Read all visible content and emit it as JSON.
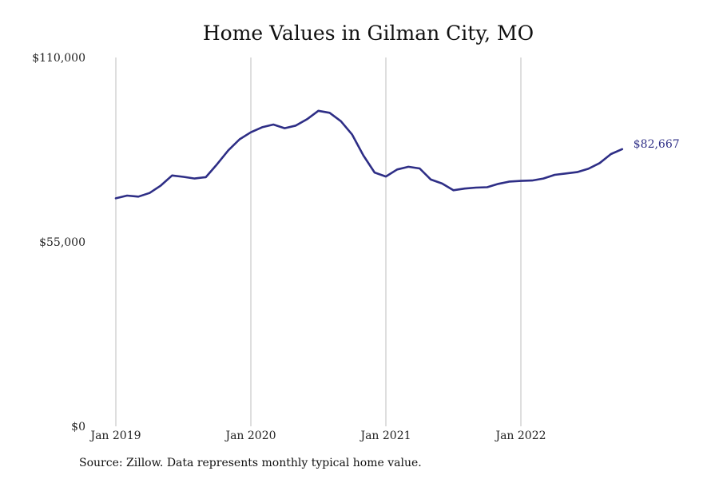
{
  "chart_data": {
    "type": "line",
    "title": "Home Values in Gilman City, MO",
    "xlabel": "",
    "ylabel": "",
    "ylim": [
      0,
      110000
    ],
    "yticks": [
      {
        "value": 0,
        "label": "$0"
      },
      {
        "value": 55000,
        "label": "$55,000"
      },
      {
        "value": 110000,
        "label": "$110,000"
      }
    ],
    "xticks": [
      {
        "index": 0,
        "label": "Jan 2019"
      },
      {
        "index": 12,
        "label": "Jan 2020"
      },
      {
        "index": 24,
        "label": "Jan 2021"
      },
      {
        "index": 36,
        "label": "Jan 2022"
      }
    ],
    "vertical_grid": true,
    "line_color": "#2e2e86",
    "end_label": "$82,667",
    "x": [
      "2019-01",
      "2019-02",
      "2019-03",
      "2019-04",
      "2019-05",
      "2019-06",
      "2019-07",
      "2019-08",
      "2019-09",
      "2019-10",
      "2019-11",
      "2019-12",
      "2020-01",
      "2020-02",
      "2020-03",
      "2020-04",
      "2020-05",
      "2020-06",
      "2020-07",
      "2020-08",
      "2020-09",
      "2020-10",
      "2020-11",
      "2020-12",
      "2021-01",
      "2021-02",
      "2021-03",
      "2021-04",
      "2021-05",
      "2021-06",
      "2021-07",
      "2021-08",
      "2021-09",
      "2021-10",
      "2021-11",
      "2021-12",
      "2022-01",
      "2022-02",
      "2022-03",
      "2022-04",
      "2022-05",
      "2022-06",
      "2022-07",
      "2022-08",
      "2022-09",
      "2022-10"
    ],
    "series": [
      {
        "values": [
          68000,
          68800,
          68500,
          69600,
          71800,
          74800,
          74400,
          73900,
          74300,
          78200,
          82300,
          85600,
          87700,
          89200,
          90000,
          88900,
          89700,
          91600,
          94100,
          93500,
          91000,
          87000,
          80800,
          75700,
          74500,
          76600,
          77400,
          76900,
          73600,
          72400,
          70400,
          70900,
          71200,
          71300,
          72300,
          73000,
          73200,
          73300,
          73900,
          75000,
          75400,
          75800,
          76800,
          78500,
          81200,
          82667
        ]
      }
    ]
  },
  "source_note": "Source: Zillow. Data represents monthly typical home value."
}
